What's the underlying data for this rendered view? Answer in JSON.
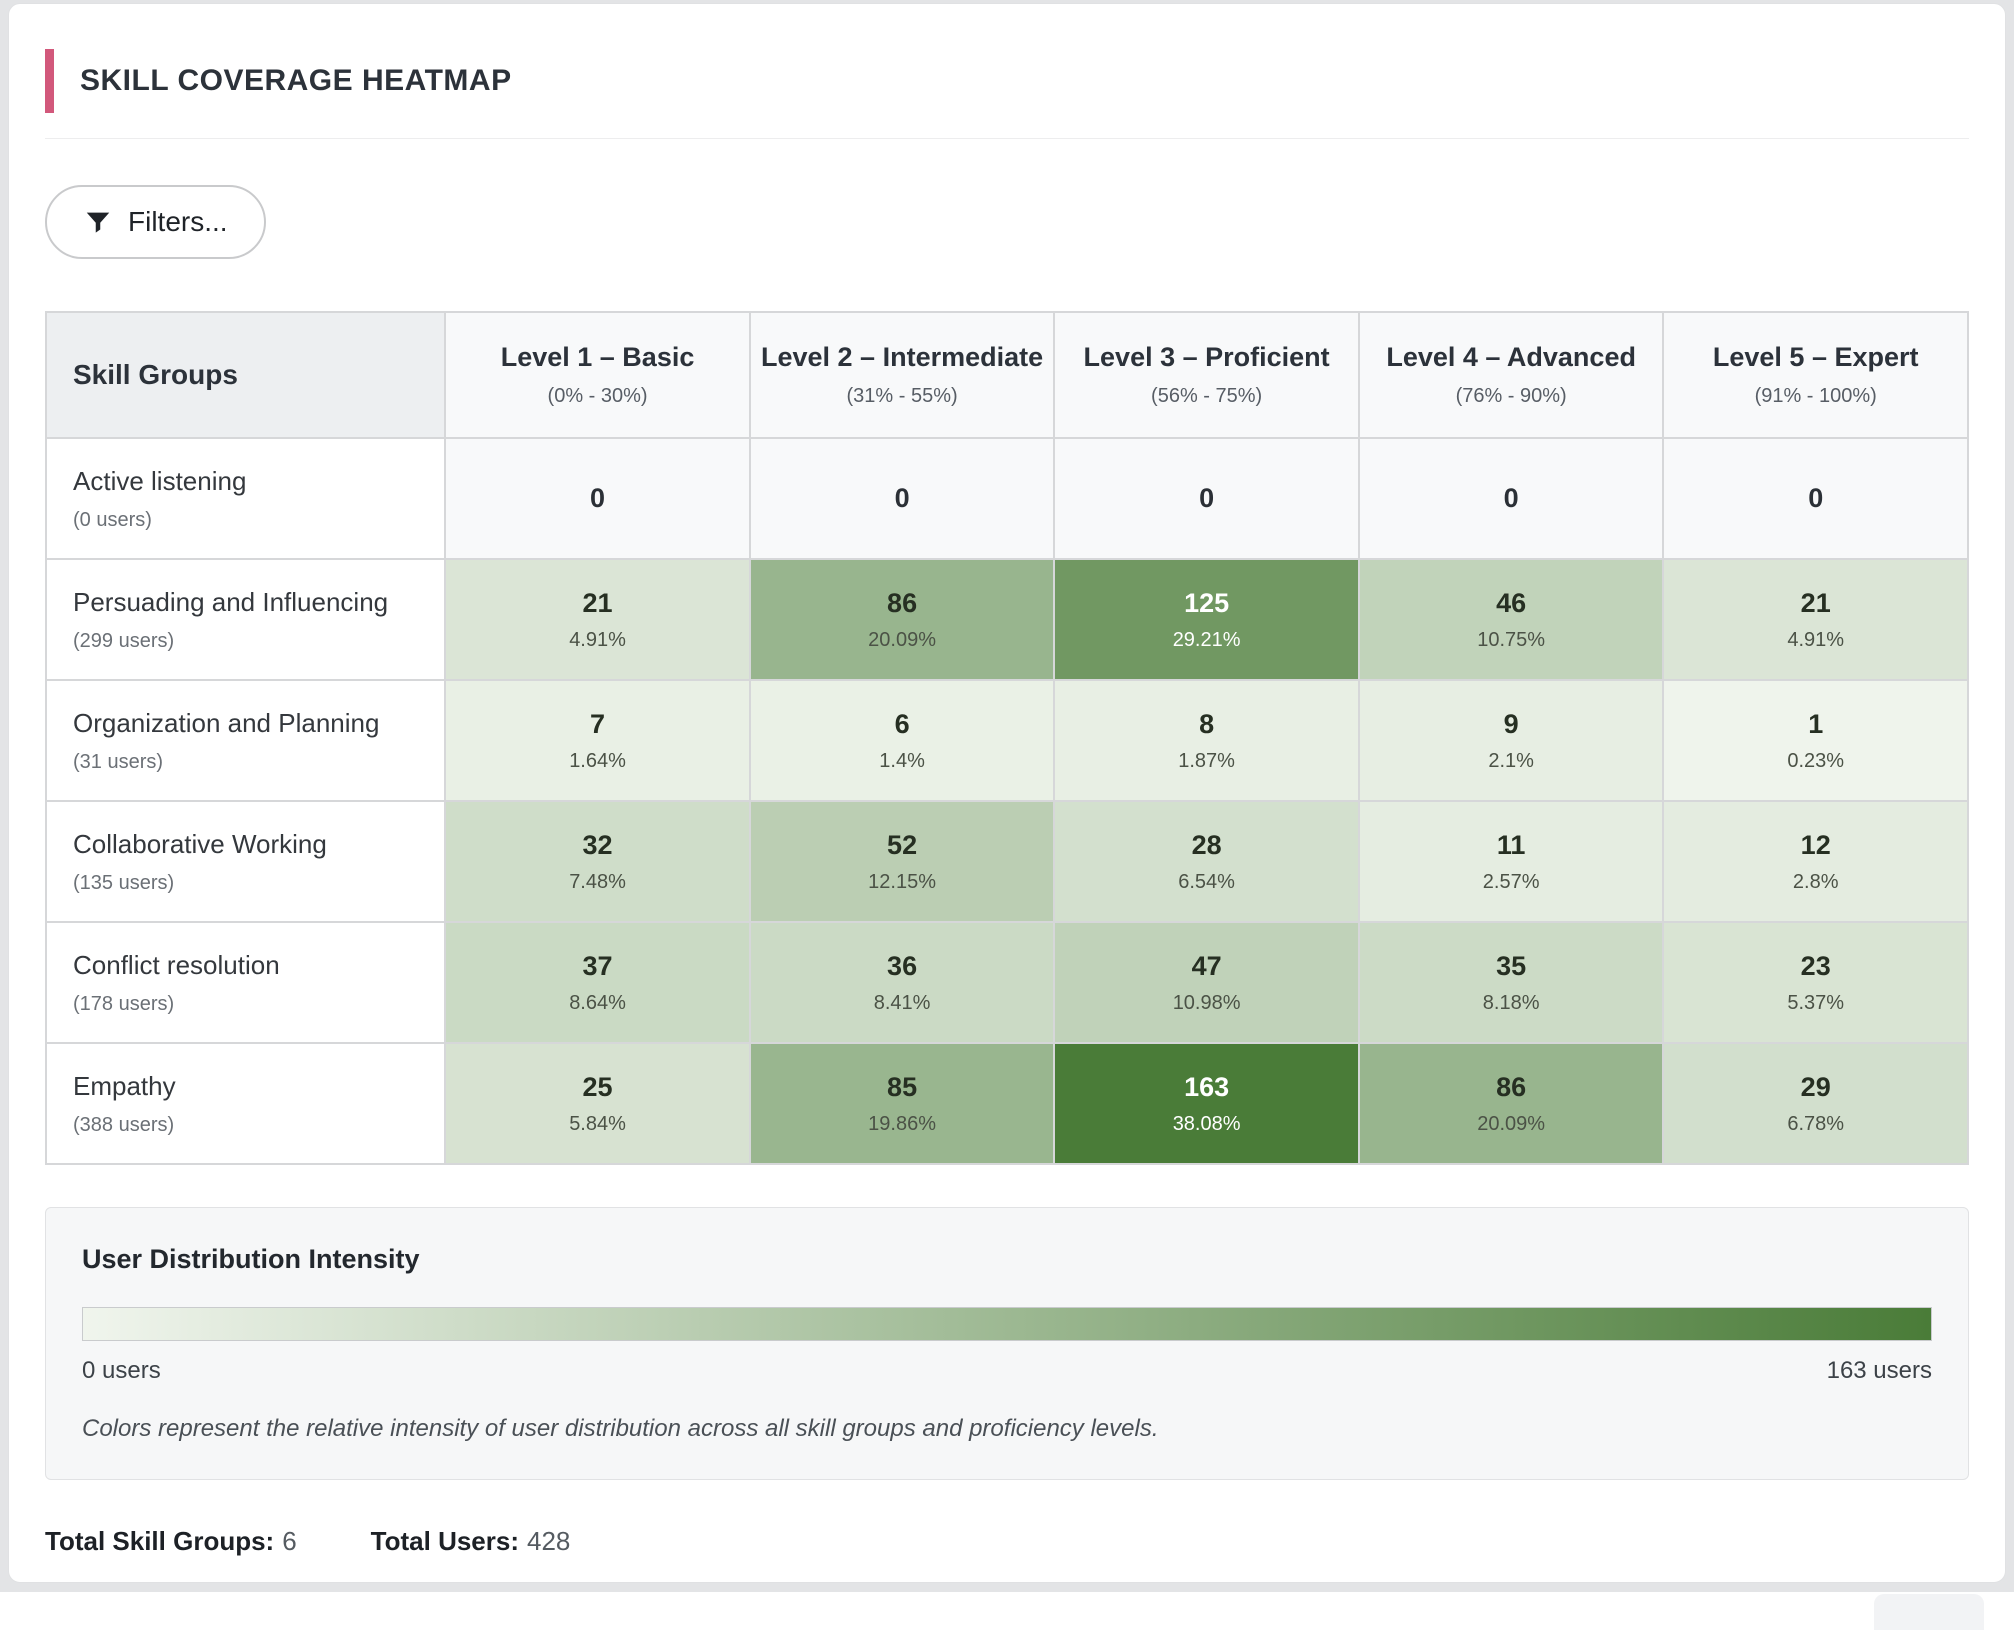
{
  "header": {
    "title": "SKILL COVERAGE HEATMAP",
    "accent_color": "#d2587b"
  },
  "toolbar": {
    "filters_label": "Filters..."
  },
  "chart_data": {
    "type": "heatmap",
    "title": "Skill Coverage Heatmap",
    "corner_label": "Skill Groups",
    "columns": [
      {
        "label": "Level 1 – Basic",
        "range": "(0% - 30%)"
      },
      {
        "label": "Level 2 – Intermediate",
        "range": "(31% - 55%)"
      },
      {
        "label": "Level 3 – Proficient",
        "range": "(56% - 75%)"
      },
      {
        "label": "Level 4 – Advanced",
        "range": "(76% - 90%)"
      },
      {
        "label": "Level 5 – Expert",
        "range": "(91% - 100%)"
      }
    ],
    "rows": [
      {
        "label": "Active listening",
        "users": "(0 users)",
        "values": [
          0,
          0,
          0,
          0,
          0
        ],
        "percents": [
          "",
          "",
          "",
          "",
          ""
        ]
      },
      {
        "label": "Persuading and Influencing",
        "users": "(299 users)",
        "values": [
          21,
          86,
          125,
          46,
          21
        ],
        "percents": [
          "4.91%",
          "20.09%",
          "29.21%",
          "10.75%",
          "4.91%"
        ]
      },
      {
        "label": "Organization and Planning",
        "users": "(31 users)",
        "values": [
          7,
          6,
          8,
          9,
          1
        ],
        "percents": [
          "1.64%",
          "1.4%",
          "1.87%",
          "2.1%",
          "0.23%"
        ]
      },
      {
        "label": "Collaborative Working",
        "users": "(135 users)",
        "values": [
          32,
          52,
          28,
          11,
          12
        ],
        "percents": [
          "7.48%",
          "12.15%",
          "6.54%",
          "2.57%",
          "2.8%"
        ]
      },
      {
        "label": "Conflict resolution",
        "users": "(178 users)",
        "values": [
          37,
          36,
          47,
          35,
          23
        ],
        "percents": [
          "8.64%",
          "8.41%",
          "10.98%",
          "8.18%",
          "5.37%"
        ]
      },
      {
        "label": "Empathy",
        "users": "(388 users)",
        "values": [
          25,
          85,
          163,
          86,
          29
        ],
        "percents": [
          "5.84%",
          "19.86%",
          "38.08%",
          "20.09%",
          "6.78%"
        ]
      }
    ],
    "min_value": 0,
    "max_value": 163,
    "min_color": "#f0f5ed",
    "max_color": "#4a7c38",
    "zero_color": "#f8f9fa",
    "dark_text_threshold": 0.7
  },
  "legend": {
    "title": "User Distribution Intensity",
    "min_label": "0 users",
    "max_label": "163 users",
    "caption": "Colors represent the relative intensity of user distribution across all skill groups and proficiency levels."
  },
  "footer": {
    "groups_label": "Total Skill Groups:",
    "groups_value": "6",
    "users_label": "Total Users:",
    "users_value": "428"
  }
}
